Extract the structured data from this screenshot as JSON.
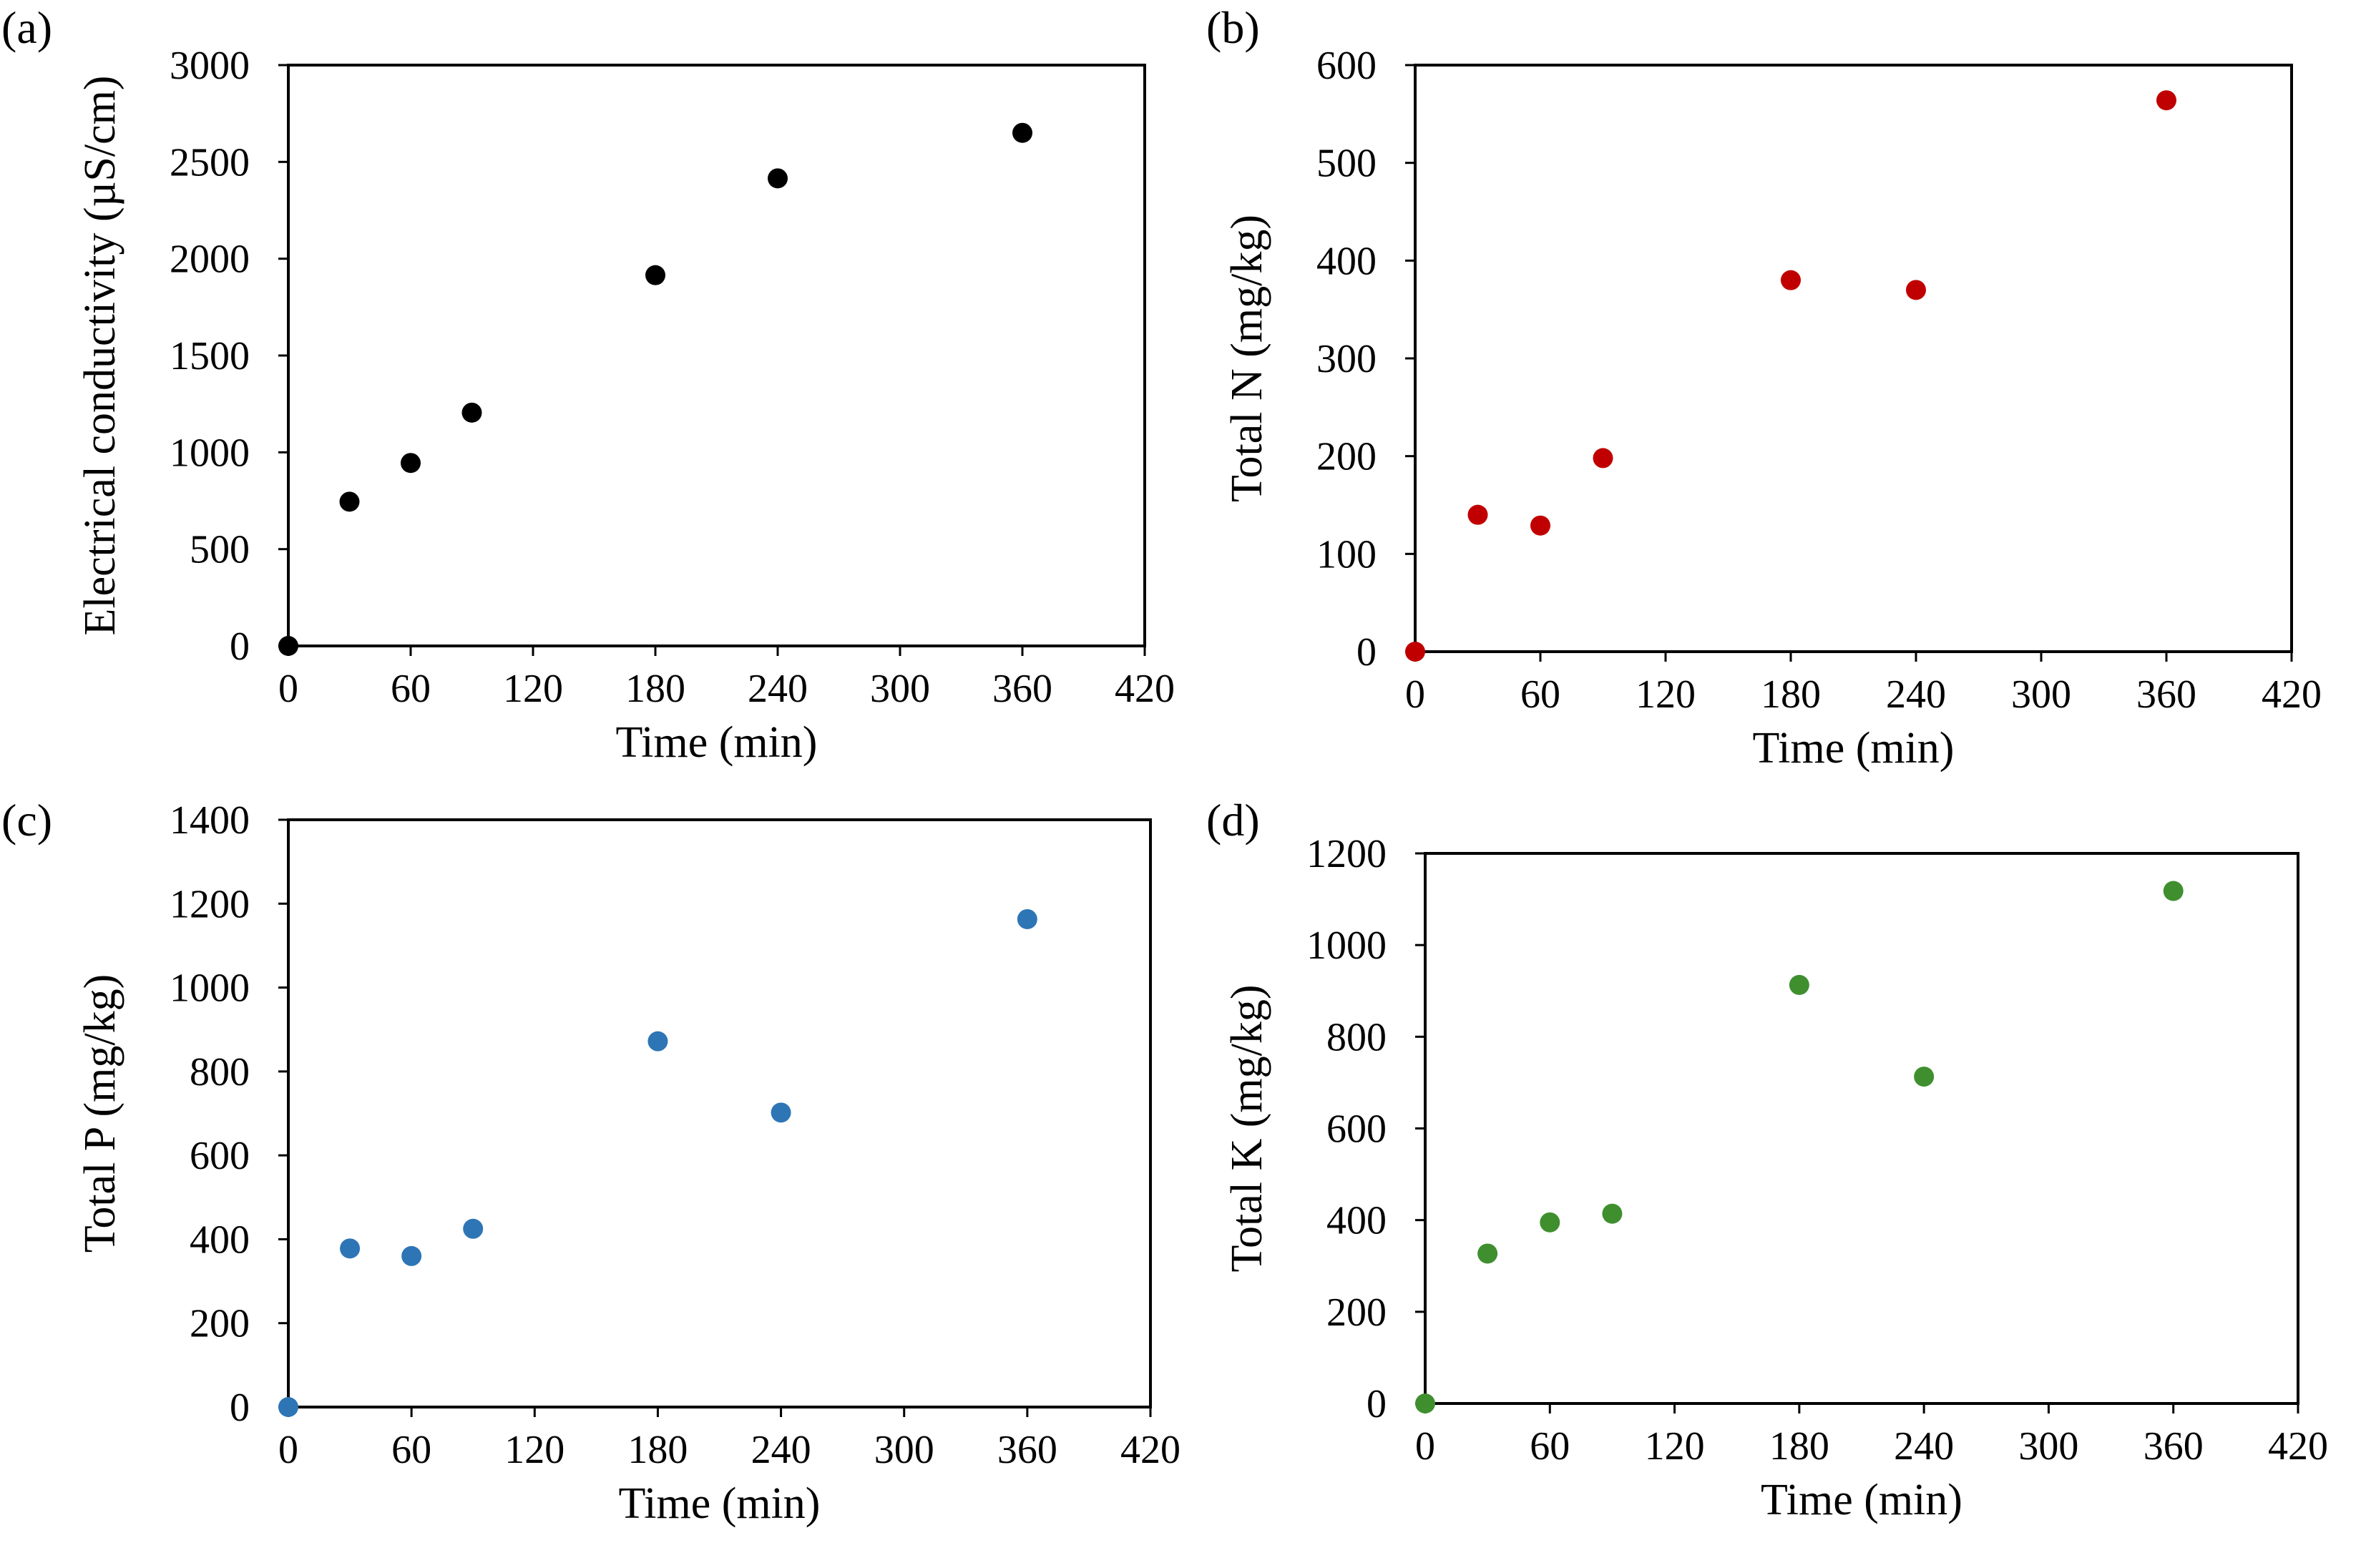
{
  "chart_data": [
    {
      "type": "scatter",
      "panel_label": "(a)",
      "xlabel": "Time (min)",
      "ylabel": "Electrical conductivity (µS/cm)",
      "xlim": [
        0,
        420
      ],
      "ylim": [
        0,
        3000
      ],
      "xticks": [
        "0",
        "60",
        "120",
        "180",
        "240",
        "300",
        "360",
        "420"
      ],
      "yticks": [
        "0",
        "500",
        "1000",
        "1500",
        "2000",
        "2500",
        "3000"
      ],
      "color": "#000000",
      "x": [
        0,
        30,
        60,
        90,
        180,
        240,
        360
      ],
      "y": [
        0,
        745,
        945,
        1205,
        1915,
        2415,
        2650
      ]
    },
    {
      "type": "scatter",
      "panel_label": "(b)",
      "xlabel": "Time (min)",
      "ylabel": "Total N (mg/kg)",
      "xlim": [
        0,
        420
      ],
      "ylim": [
        0,
        600
      ],
      "xticks": [
        "0",
        "60",
        "120",
        "180",
        "240",
        "300",
        "360",
        "420"
      ],
      "yticks": [
        "0",
        "100",
        "200",
        "300",
        "400",
        "500",
        "600"
      ],
      "color": "#c00000",
      "x": [
        0,
        30,
        60,
        90,
        180,
        240,
        360
      ],
      "y": [
        0,
        140,
        129,
        198,
        380,
        370,
        564
      ]
    },
    {
      "type": "scatter",
      "panel_label": "(c)",
      "xlabel": "Time (min)",
      "ylabel": "Total P (mg/kg)",
      "xlim": [
        0,
        420
      ],
      "ylim": [
        0,
        1400
      ],
      "xticks": [
        "0",
        "60",
        "120",
        "180",
        "240",
        "300",
        "360",
        "420"
      ],
      "yticks": [
        "0",
        "200",
        "400",
        "600",
        "800",
        "1000",
        "1200",
        "1400"
      ],
      "color": "#2e75b6",
      "x": [
        0,
        30,
        60,
        90,
        180,
        240,
        360
      ],
      "y": [
        0,
        378,
        360,
        425,
        872,
        702,
        1163
      ]
    },
    {
      "type": "scatter",
      "panel_label": "(d)",
      "xlabel": "Time (min)",
      "ylabel": "Total K (mg/kg)",
      "xlim": [
        0,
        420
      ],
      "ylim": [
        0,
        1200
      ],
      "xticks": [
        "0",
        "60",
        "120",
        "180",
        "240",
        "300",
        "360",
        "420"
      ],
      "yticks": [
        "0",
        "200",
        "400",
        "600",
        "800",
        "1000",
        "1200"
      ],
      "color": "#3f8f2f",
      "x": [
        0,
        30,
        60,
        90,
        180,
        240,
        360
      ],
      "y": [
        0,
        327,
        395,
        414,
        913,
        713,
        1118
      ]
    }
  ]
}
